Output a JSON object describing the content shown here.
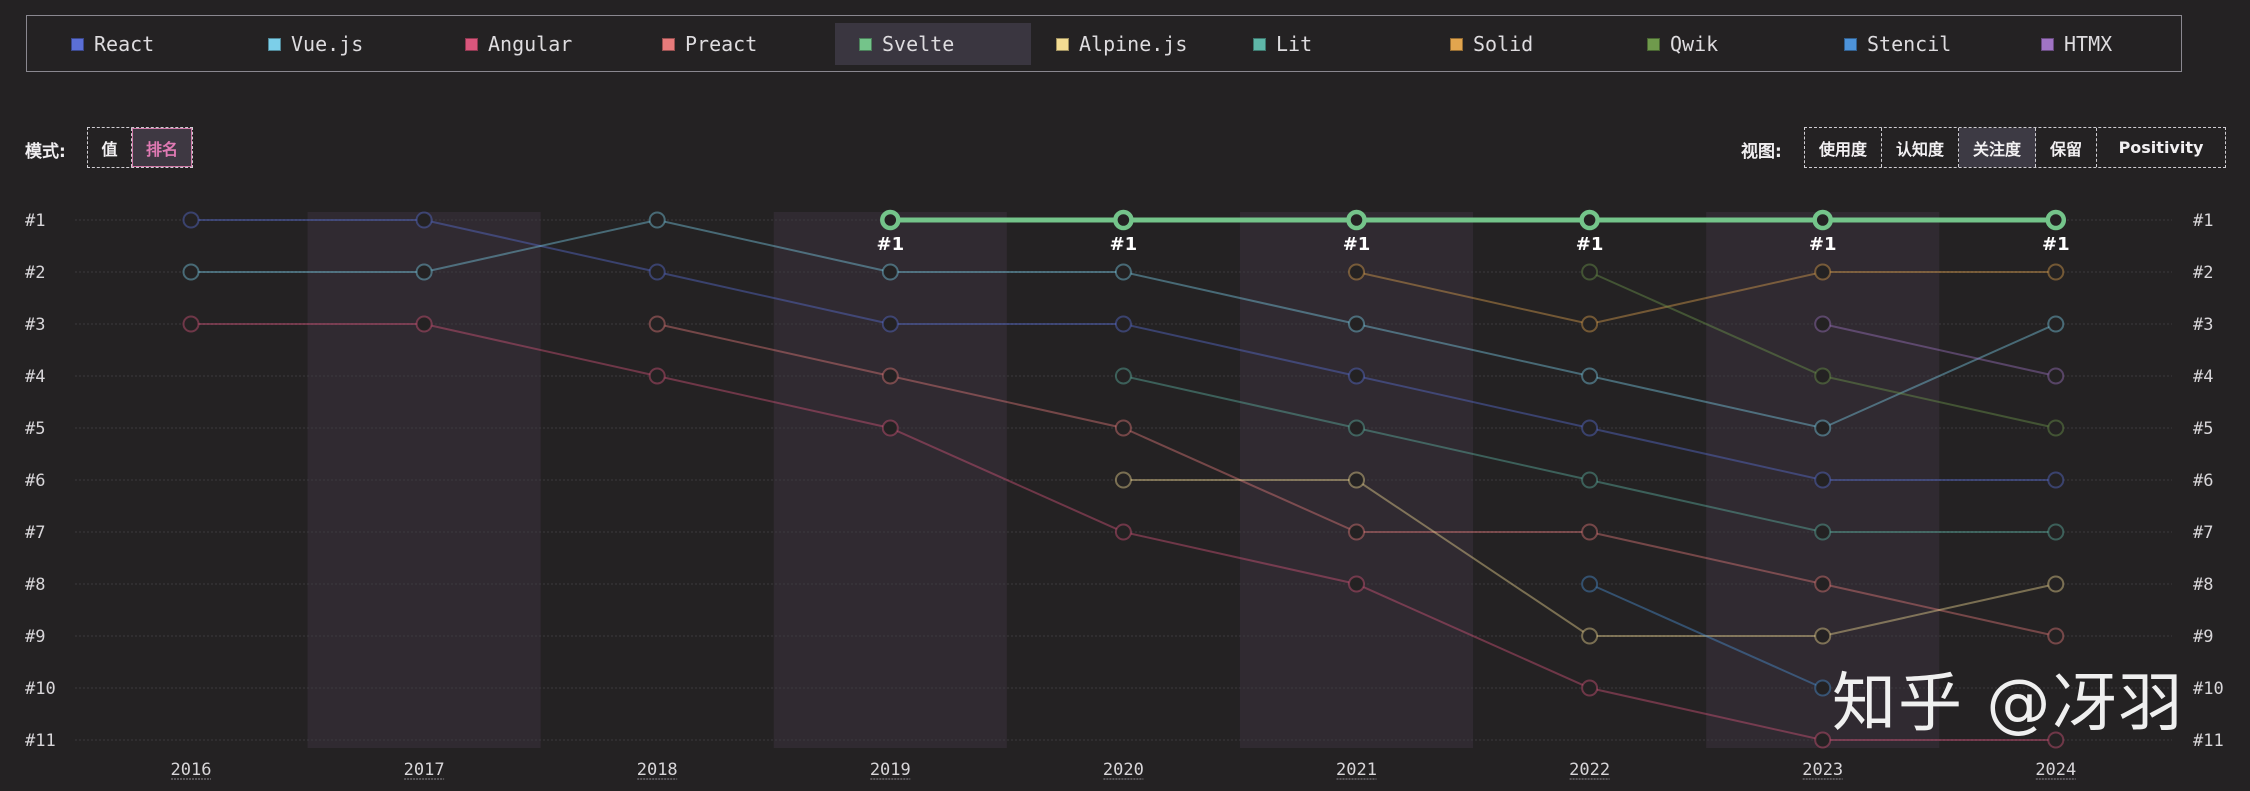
{
  "legend": [
    {
      "name": "React",
      "color": "#5b6fd6"
    },
    {
      "name": "Vue.js",
      "color": "#7ccfe9"
    },
    {
      "name": "Angular",
      "color": "#d9567c"
    },
    {
      "name": "Preact",
      "color": "#e77b7b"
    },
    {
      "name": "Svelte",
      "color": "#74c48a",
      "active": true
    },
    {
      "name": "Alpine.js",
      "color": "#f3dc93"
    },
    {
      "name": "Lit",
      "color": "#5fb7a8"
    },
    {
      "name": "Solid",
      "color": "#e2a54e"
    },
    {
      "name": "Qwik",
      "color": "#6f9a4c"
    },
    {
      "name": "Stencil",
      "color": "#4d93d9"
    },
    {
      "name": "HTMX",
      "color": "#a074c4"
    }
  ],
  "mode": {
    "label": "模式:",
    "options": [
      "值",
      "排名"
    ],
    "active": "排名"
  },
  "view": {
    "label": "视图:",
    "options": [
      "使用度",
      "认知度",
      "关注度",
      "保留",
      "Positivity"
    ],
    "active": "关注度"
  },
  "watermark": "知乎 @冴羽",
  "chart_data": {
    "type": "line",
    "title": "",
    "xlabel": "",
    "ylabel": "",
    "x": [
      "2016",
      "2017",
      "2018",
      "2019",
      "2020",
      "2021",
      "2022",
      "2023",
      "2024"
    ],
    "y_ticks": [
      "#1",
      "#2",
      "#3",
      "#4",
      "#5",
      "#6",
      "#7",
      "#8",
      "#9",
      "#10",
      "#11"
    ],
    "ylim": [
      1,
      11
    ],
    "highlight": "Svelte",
    "highlight_label": "#1",
    "series": [
      {
        "name": "React",
        "color": "#5b6fd6",
        "values": [
          1,
          1,
          2,
          3,
          3,
          4,
          5,
          6,
          6
        ]
      },
      {
        "name": "Vue.js",
        "color": "#7ccfe9",
        "values": [
          2,
          2,
          1,
          2,
          2,
          3,
          4,
          5,
          3
        ]
      },
      {
        "name": "Angular",
        "color": "#d9567c",
        "values": [
          3,
          3,
          4,
          5,
          7,
          8,
          10,
          11,
          11
        ]
      },
      {
        "name": "Preact",
        "color": "#e77b7b",
        "values": [
          null,
          null,
          3,
          4,
          5,
          7,
          7,
          8,
          9
        ]
      },
      {
        "name": "Svelte",
        "color": "#74c48a",
        "values": [
          null,
          null,
          null,
          1,
          1,
          1,
          1,
          1,
          1
        ]
      },
      {
        "name": "Alpine.js",
        "color": "#f3dc93",
        "values": [
          null,
          null,
          null,
          null,
          6,
          6,
          9,
          9,
          8
        ]
      },
      {
        "name": "Lit",
        "color": "#5fb7a8",
        "values": [
          null,
          null,
          null,
          null,
          4,
          5,
          6,
          7,
          7
        ]
      },
      {
        "name": "Solid",
        "color": "#e2a54e",
        "values": [
          null,
          null,
          null,
          null,
          null,
          2,
          3,
          2,
          2
        ]
      },
      {
        "name": "Qwik",
        "color": "#6f9a4c",
        "values": [
          null,
          null,
          null,
          null,
          null,
          null,
          2,
          4,
          5
        ]
      },
      {
        "name": "Stencil",
        "color": "#4d93d9",
        "values": [
          null,
          null,
          null,
          null,
          null,
          null,
          8,
          10,
          null
        ]
      },
      {
        "name": "HTMX",
        "color": "#a074c4",
        "values": [
          null,
          null,
          null,
          null,
          null,
          null,
          null,
          3,
          4
        ]
      }
    ]
  }
}
